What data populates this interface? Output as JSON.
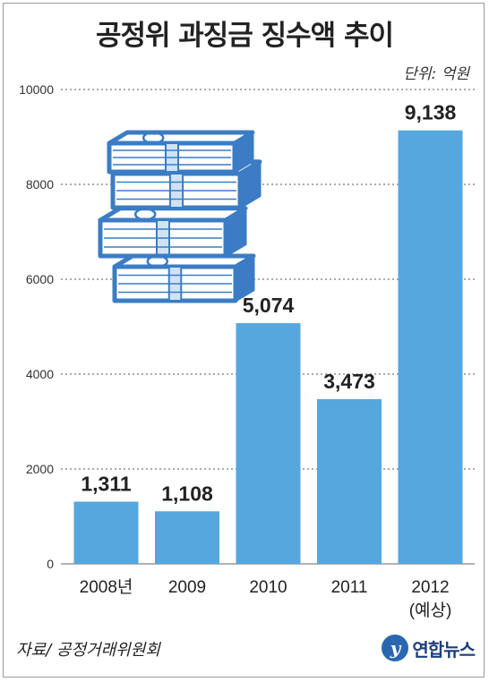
{
  "title": "공정위 과징금 징수액 추이",
  "unit_label": "단위: 억원",
  "source_label": "자료/ 공정거래위원회",
  "logo_text": "연합뉴스",
  "logo_mark": "y",
  "illustration_icon": "money-stack-icon",
  "colors": {
    "bar": "#55a7de",
    "grid": "#555555",
    "text": "#222222",
    "logo": "#2a67b1"
  },
  "chart_data": {
    "type": "bar",
    "title": "공정위 과징금 징수액 추이",
    "unit": "단위: 억원",
    "categories": [
      "2008년",
      "2009",
      "2010",
      "2011",
      "2012\n(예상)"
    ],
    "values": [
      1311,
      1108,
      5074,
      3473,
      9138
    ],
    "value_labels": [
      "1,311",
      "1,108",
      "5,074",
      "3,473",
      "9,138"
    ],
    "ylim": [
      0,
      10000
    ],
    "yticks": [
      0,
      2000,
      4000,
      6000,
      8000,
      10000
    ],
    "grid": true,
    "grid_style": "dotted",
    "xlabel": "",
    "ylabel": ""
  }
}
